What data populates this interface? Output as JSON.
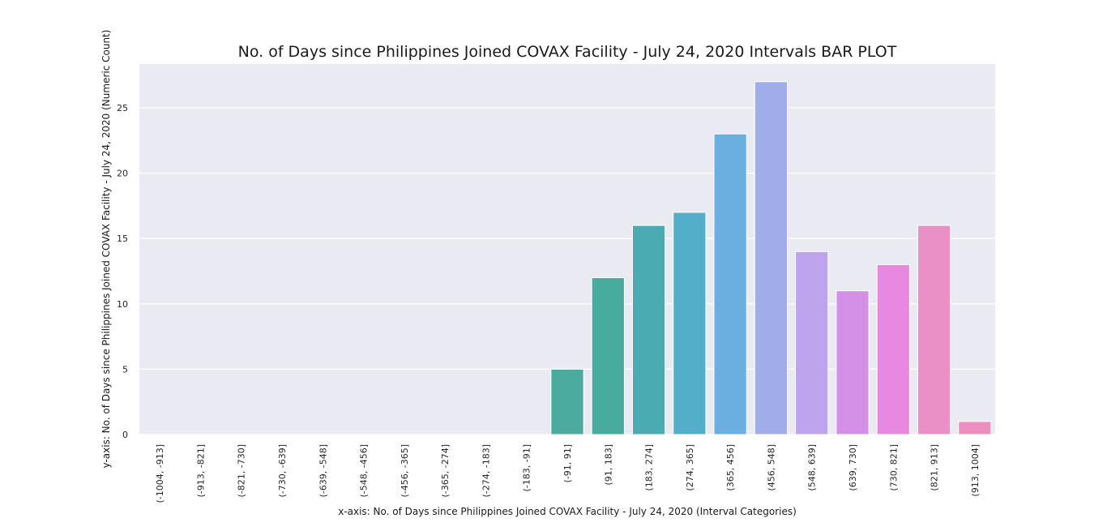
{
  "chart_data": {
    "type": "bar",
    "title": "No. of Days since Philippines Joined COVAX Facility - July 24, 2020 Intervals BAR PLOT",
    "xlabel": "x-axis: No. of Days since Philippines Joined COVAX Facility - July 24, 2020 (Interval Categories)",
    "ylabel": "y-axis: No. of Days since Philippines Joined COVAX Facility - July 24, 2020 (Numeric Count)",
    "categories": [
      "(-1004, -913]",
      "(-913, -821]",
      "(-821, -730]",
      "(-730, -639]",
      "(-639, -548]",
      "(-548, -456]",
      "(-456, -365]",
      "(-365, -274]",
      "(-274, -183]",
      "(-183, -91]",
      "(-91, 91]",
      "(91, 183]",
      "(183, 274]",
      "(274, 365]",
      "(365, 456]",
      "(456, 548]",
      "(548, 639]",
      "(639, 730]",
      "(730, 821]",
      "(821, 913]",
      "(913, 1004]"
    ],
    "values": [
      0,
      0,
      0,
      0,
      0,
      0,
      0,
      0,
      0,
      0,
      5,
      12,
      16,
      17,
      23,
      27,
      14,
      11,
      13,
      16,
      1
    ],
    "colors": [
      "#f77189",
      "#f7754f",
      "#dc8932",
      "#c39532",
      "#ae9d31",
      "#97a431",
      "#77ab31",
      "#33b07a",
      "#35ad9c",
      "#36abae",
      "#4aab9e",
      "#47ab9d",
      "#4aabb3",
      "#53afc9",
      "#6aafe0",
      "#a1acea",
      "#bda4ec",
      "#d490e6",
      "#e889e1",
      "#e990c7",
      "#ea8fbe"
    ],
    "yticks": [
      "0",
      "5",
      "10",
      "15",
      "20",
      "25"
    ],
    "ylim": [
      0,
      28.35
    ],
    "grid": true,
    "legend": "none",
    "background": "#eaeaf2"
  }
}
